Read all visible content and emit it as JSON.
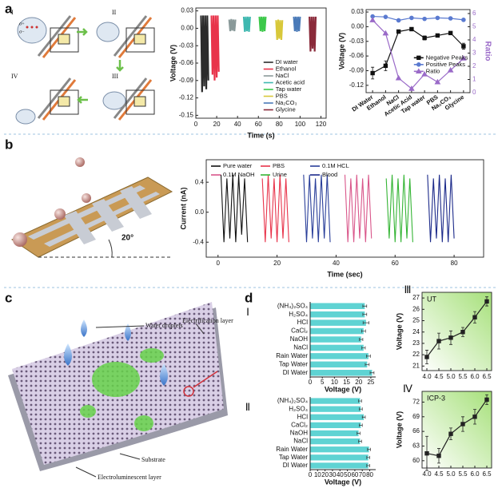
{
  "panel_labels": [
    "a",
    "b",
    "c",
    "d"
  ],
  "diagram_a": {
    "steps": [
      "I",
      "II",
      "III",
      "IV"
    ],
    "charges": [
      "σ+",
      "σ−"
    ]
  },
  "diagram_b": {
    "angle": "20°"
  },
  "diagram_c": {
    "labels": [
      "Water droplets",
      "Electrification layer",
      "Substrate",
      "Electroluminescent layer"
    ]
  },
  "chart_data": [
    {
      "type": "line",
      "xlabel": "Time (s)",
      "ylabel": "Voltage (V)",
      "legend": "lower right",
      "xlim": [
        0,
        125
      ],
      "xticks": [
        0,
        20,
        40,
        60,
        80,
        100,
        120
      ],
      "ylim": [
        -0.155,
        0.035
      ],
      "yticks": [
        0.03,
        {
          "value": 0,
          "label": "0.00"
        },
        -0.03,
        -0.06,
        -0.09,
        -0.12,
        -0.15
      ],
      "series": [
        {
          "name": "DI water",
          "color": "#2b2b2b",
          "x": [
            5,
            6,
            7,
            8,
            9,
            10,
            11,
            12
          ],
          "values": [
            0.022,
            -0.11,
            0.022,
            -0.1,
            0.022,
            -0.105,
            0.022,
            -0.09
          ]
        },
        {
          "name": "Ethanol",
          "color": "#e8334a",
          "x": [
            15,
            16,
            17,
            18,
            19,
            20,
            21,
            22
          ],
          "values": [
            0.022,
            -0.08,
            0.022,
            -0.09,
            0.022,
            -0.085,
            0.022,
            -0.075
          ]
        },
        {
          "name": "NaCl",
          "color": "#8a9a9a",
          "x": [
            32,
            33,
            34,
            35,
            36,
            37,
            38
          ],
          "values": [
            0.015,
            -0.005,
            0.016,
            -0.004,
            0.015,
            -0.005,
            0.015
          ]
        },
        {
          "name": "Acetic acid",
          "color": "#3fb8b0",
          "x": [
            46,
            47,
            48,
            49,
            50,
            51,
            52
          ],
          "values": [
            0.02,
            -0.006,
            0.02,
            -0.005,
            0.02,
            -0.006,
            0.02
          ]
        },
        {
          "name": "Tap water",
          "color": "#3cc84a",
          "x": [
            61,
            62,
            63,
            64,
            65,
            66,
            67
          ],
          "values": [
            0.02,
            -0.005,
            0.02,
            -0.006,
            0.02,
            -0.005,
            0.02
          ]
        },
        {
          "name": "PBS",
          "color": "#d8c83a",
          "x": [
            77,
            78,
            79,
            80,
            81,
            82,
            83
          ],
          "values": [
            0.014,
            -0.02,
            0.015,
            -0.018,
            0.014,
            -0.02,
            0.014
          ]
        },
        {
          "name": "Na₂CO₃",
          "color": "#4a7ab8",
          "x": [
            94,
            95,
            96,
            97,
            98,
            99,
            100
          ],
          "values": [
            0.02,
            -0.005,
            0.02,
            -0.006,
            0.02,
            -0.005,
            0.02
          ]
        },
        {
          "name": "Glycine",
          "color": "#8a2a3a",
          "x": [
            109,
            110,
            111,
            112,
            113,
            114,
            115
          ],
          "values": [
            0.02,
            -0.04,
            0.02,
            -0.035,
            0.02,
            -0.04,
            0.02
          ]
        }
      ]
    },
    {
      "type": "line",
      "ylabel": "Voltage (V)",
      "y2label": "Ratio",
      "legend": "center right",
      "categories": [
        "DI Water",
        "Ethanol",
        "NaCl",
        "Acetic Acid",
        "Tap water",
        "PBS",
        "Na₂CO₃",
        "Glycine"
      ],
      "ylim": [
        -0.135,
        0.035
      ],
      "yticks": [
        0.03,
        {
          "value": 0,
          "label": "0.00"
        },
        -0.03,
        -0.06,
        -0.09,
        -0.12
      ],
      "y2lim": [
        0,
        6.3
      ],
      "y2ticks": [
        0,
        1,
        2,
        3,
        4,
        5,
        6
      ],
      "series": [
        {
          "name": "Negative Peaks",
          "color": "#111111",
          "marker": "square",
          "values": [
            -0.095,
            -0.08,
            -0.01,
            -0.005,
            -0.023,
            -0.018,
            -0.013,
            -0.04
          ],
          "errors": [
            0.012,
            0.01,
            0.003,
            0.003,
            0.004,
            0.003,
            0.003,
            0.006
          ]
        },
        {
          "name": "Positive Peaks",
          "color": "#5a7ad0",
          "marker": "circle",
          "values": [
            0.021,
            0.02,
            0.013,
            0.018,
            0.016,
            0.018,
            0.017,
            0.014
          ]
        },
        {
          "name": "Ratio",
          "color": "#9a6ac8",
          "marker": "triangle",
          "axis": "y2",
          "values": [
            5.5,
            4.5,
            1.1,
            0.3,
            1.4,
            0.8,
            1.7,
            2.6
          ]
        }
      ]
    },
    {
      "type": "line",
      "xlabel": "Time (sec)",
      "ylabel": "Current (nA)",
      "legend": "upper left",
      "xlim": [
        -4,
        90
      ],
      "xticks": [
        0,
        20,
        40,
        60,
        80
      ],
      "ylim": [
        -0.6,
        0.7
      ],
      "yticks": [
        0.4,
        {
          "value": 0,
          "label": "0.0"
        },
        -0.4
      ],
      "series": [
        {
          "name": "Pure water",
          "color": "#111111",
          "x": [
            1,
            2,
            3,
            4,
            5,
            6,
            7,
            8,
            9,
            10
          ],
          "values": [
            0.5,
            -0.4,
            0.45,
            -0.35,
            0.5,
            -0.4,
            0.5,
            -0.3,
            0.45,
            -0.4
          ]
        },
        {
          "name": "PBS",
          "color": "#e8334a",
          "x": [
            15,
            16,
            17,
            18,
            19,
            20,
            21,
            22,
            23,
            24
          ],
          "values": [
            0.45,
            -0.4,
            0.5,
            -0.35,
            0.45,
            -0.4,
            0.5,
            -0.35,
            0.45,
            -0.4
          ]
        },
        {
          "name": "0.1M HCL",
          "color": "#2a3f9a",
          "x": [
            29,
            30,
            31,
            32,
            33,
            34,
            35,
            36,
            37,
            38
          ],
          "values": [
            0.5,
            -0.4,
            0.5,
            -0.35,
            0.45,
            -0.4,
            0.5,
            -0.35,
            0.5,
            -0.4
          ]
        },
        {
          "name": "0.1M NaOH",
          "color": "#d9568a",
          "x": [
            43,
            44,
            45,
            46,
            47,
            48,
            49,
            50,
            51,
            52
          ],
          "values": [
            0.5,
            -0.4,
            0.45,
            -0.4,
            0.5,
            -0.35,
            0.45,
            -0.4,
            0.5,
            -0.35
          ]
        },
        {
          "name": "Urine",
          "color": "#35b535",
          "x": [
            57,
            58,
            59,
            60,
            61,
            62,
            63,
            64,
            65,
            66
          ],
          "values": [
            0.45,
            -0.35,
            0.5,
            -0.4,
            0.45,
            -0.4,
            0.5,
            -0.35,
            0.45,
            -0.4
          ]
        },
        {
          "name": "Blood",
          "color": "#1c2a8a",
          "x": [
            71,
            72,
            73,
            74,
            75,
            76,
            77,
            78,
            79,
            80
          ],
          "values": [
            0.5,
            -0.4,
            0.45,
            -0.35,
            0.5,
            -0.4,
            0.45,
            -0.4,
            0.5,
            -0.35
          ]
        }
      ]
    },
    {
      "type": "hbar",
      "label": "Ⅰ",
      "xlabel": "Voltage (V)",
      "color": "#5fd3d3",
      "categories": [
        "(NH₄)₂SO₄",
        "H₂SO₄",
        "HCl",
        "CaCl₂",
        "NaOH",
        "NaCl",
        "Rain Water",
        "Tap Water",
        "DI Water"
      ],
      "values": [
        22.5,
        22.5,
        23,
        22,
        21,
        22,
        24,
        23.5,
        25.5
      ],
      "errors": [
        0.8,
        0.8,
        1.2,
        0.8,
        0.7,
        0.7,
        0.8,
        0.8,
        0.8
      ],
      "xlim": [
        0,
        27
      ],
      "xticks": [
        0,
        5,
        10,
        15,
        20,
        25
      ]
    },
    {
      "type": "hbar",
      "label": "Ⅱ",
      "xlabel": "Voltage (V)",
      "color": "#5fd3d3",
      "categories": [
        "(NH₄)₂SO₄",
        "H₂SO₄",
        "HCl",
        "CaCl₂",
        "NaOH",
        "NaCl",
        "Rain Water",
        "Tap Water",
        "DI Water"
      ],
      "values": [
        67,
        68,
        72,
        68,
        65,
        67,
        79,
        78,
        78
      ],
      "errors": [
        2,
        2,
        2,
        2,
        2,
        2,
        2,
        2,
        2
      ],
      "xlim": [
        0,
        88
      ],
      "xticks": [
        0,
        10,
        20,
        30,
        40,
        50,
        60,
        70,
        80
      ]
    },
    {
      "type": "line",
      "label": "Ⅲ",
      "annotation": "UT",
      "ylabel": "Voltage (V)",
      "x": [
        4.0,
        4.5,
        5.0,
        5.5,
        6.0,
        6.5
      ],
      "xlim": [
        3.8,
        6.7
      ],
      "xticks": [
        {
          "value": 4,
          "label": "4.0"
        },
        4.5,
        {
          "value": 5,
          "label": "5.0"
        },
        5.5,
        {
          "value": 6,
          "label": "6.0"
        },
        6.5
      ],
      "ylim": [
        20.6,
        27.5
      ],
      "yticks": [
        21,
        22,
        23,
        24,
        25,
        26,
        27
      ],
      "series": [
        {
          "color": "#222222",
          "marker": "square",
          "values": [
            21.8,
            23.2,
            23.5,
            24.0,
            25.3,
            26.7
          ],
          "errors": [
            0.6,
            0.7,
            0.6,
            0.4,
            0.5,
            0.4
          ]
        }
      ]
    },
    {
      "type": "line",
      "label": "Ⅳ",
      "annotation": "ICP-3",
      "ylabel": "Voltage (V)",
      "x": [
        4.0,
        4.5,
        5.0,
        5.5,
        6.0,
        6.5
      ],
      "xlim": [
        3.8,
        6.7
      ],
      "xticks": [
        {
          "value": 4,
          "label": "4.0"
        },
        4.5,
        {
          "value": 5,
          "label": "5.0"
        },
        5.5,
        {
          "value": 6,
          "label": "6.0"
        },
        6.5
      ],
      "ylim": [
        58.5,
        74.2
      ],
      "yticks": [
        60,
        63,
        66,
        69,
        72
      ],
      "series": [
        {
          "color": "#222222",
          "marker": "square",
          "values": [
            61.5,
            61,
            65.5,
            67.5,
            69,
            72.5
          ],
          "errors": [
            3.5,
            1.5,
            1.2,
            1.5,
            1.5,
            1.0
          ]
        }
      ]
    }
  ]
}
